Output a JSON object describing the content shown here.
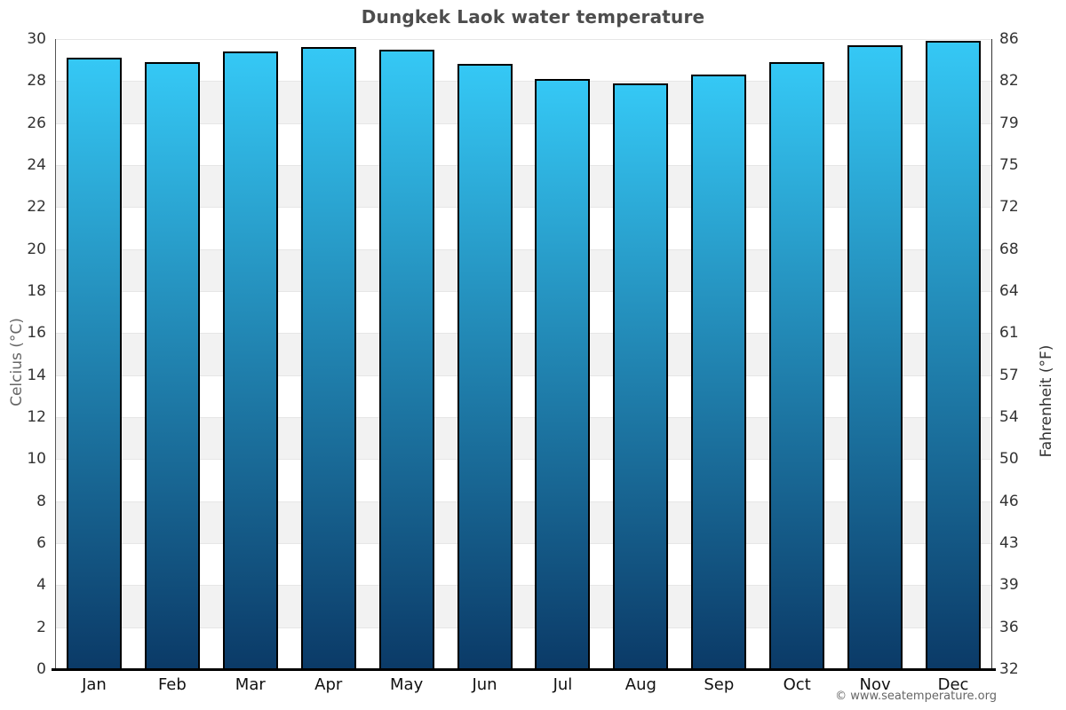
{
  "chart_data": {
    "type": "bar",
    "title": "Dungkek Laok water temperature",
    "categories": [
      "Jan",
      "Feb",
      "Mar",
      "Apr",
      "May",
      "Jun",
      "Jul",
      "Aug",
      "Sep",
      "Oct",
      "Nov",
      "Dec"
    ],
    "values": [
      29.1,
      28.9,
      29.4,
      29.6,
      29.5,
      28.8,
      28.1,
      27.9,
      28.3,
      28.9,
      29.7,
      29.9
    ],
    "xlabel": "",
    "ylabel_left": "Celcius (°C)",
    "ylabel_right": "Fahrenheit (°F)",
    "ylim": [
      0,
      30
    ],
    "celsius_ticks": [
      30,
      28,
      26,
      24,
      22,
      20,
      18,
      16,
      14,
      12,
      10,
      8,
      6,
      4,
      2,
      0
    ],
    "fahrenheit_ticks": [
      86,
      82,
      79,
      75,
      72,
      68,
      64,
      61,
      57,
      54,
      50,
      46,
      43,
      39,
      36,
      32
    ],
    "grid": "alternating horizontal bands every 2°C, top band white",
    "legend": "none",
    "colors": {
      "bar_gradient_top": "#35C8F5",
      "bar_gradient_bottom": "#0B3A67",
      "bar_border": "#000000",
      "band_fill": "#F2F2F2",
      "gridline": "#E6E6E6",
      "title_text": "#4D4D4D",
      "tick_text": "#333333",
      "axis_title_left_text": "#666666",
      "axis_title_right_text": "#333333"
    }
  },
  "footer": {
    "credit": "© www.seatemperature.org"
  }
}
